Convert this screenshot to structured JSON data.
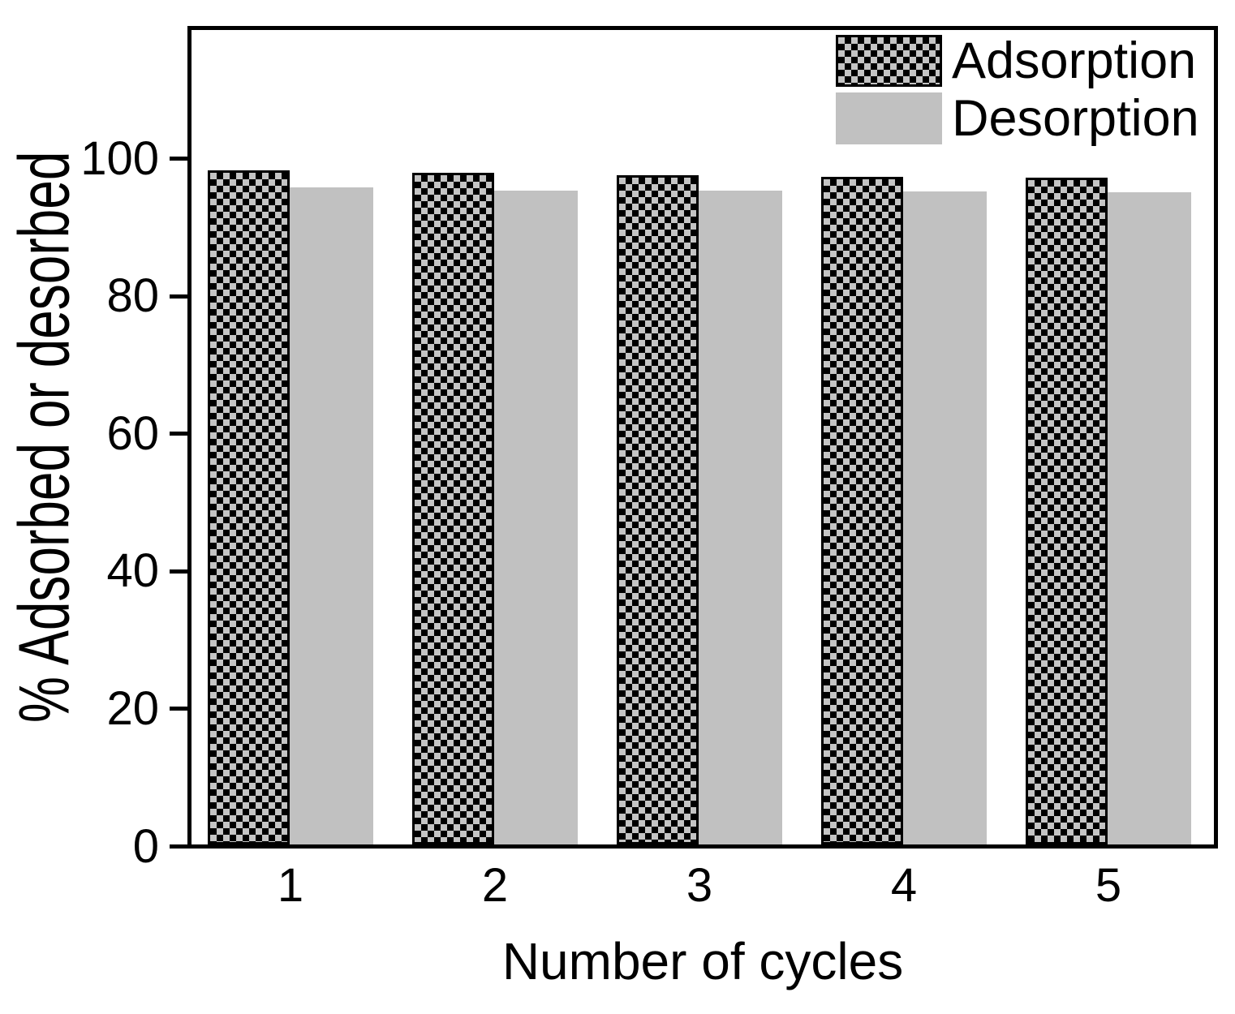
{
  "chart_data": {
    "type": "bar",
    "title": "",
    "xlabel": "Number of cycles",
    "ylabel": "% Adsorbed or desorbed",
    "categories": [
      "1",
      "2",
      "3",
      "4",
      "5"
    ],
    "series": [
      {
        "name": "Adsorption",
        "style": "checkerboard-pattern",
        "values": [
          98.0,
          97.6,
          97.3,
          97.1,
          96.9
        ]
      },
      {
        "name": "Desorption",
        "style": "solid-gray",
        "values": [
          95.5,
          95.1,
          95.0,
          94.9,
          94.8
        ]
      }
    ],
    "yticks": [
      0,
      20,
      40,
      60,
      80,
      100
    ],
    "ylim": [
      0,
      118.4
    ],
    "grid": false,
    "legend_position": "top-right-inside",
    "colors": {
      "axis": "#000000",
      "adsorption_pattern_fg": "#000000",
      "adsorption_pattern_bg": "#c4c4c4",
      "desorption_fill": "#c1c1c1",
      "background": "#ffffff"
    }
  }
}
